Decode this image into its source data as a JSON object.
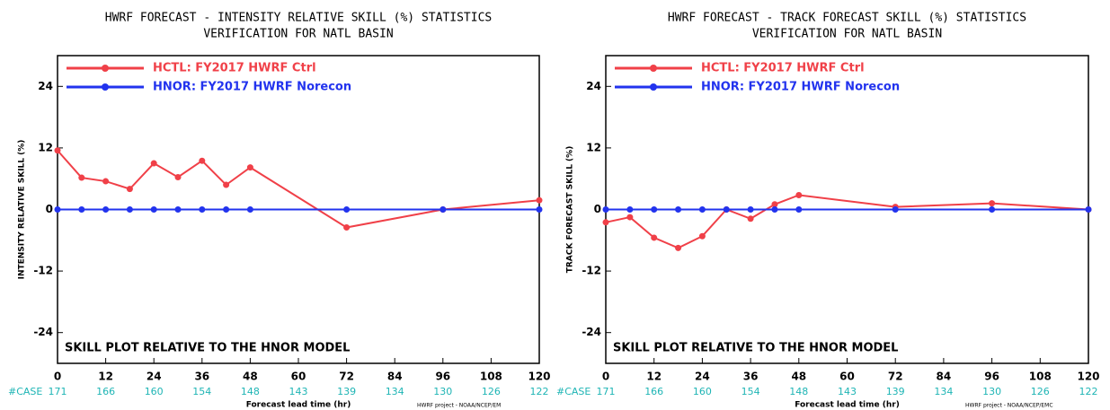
{
  "chart_data": [
    {
      "type": "line",
      "title": "HWRF FORECAST - INTENSITY RELATIVE SKILL (%) STATISTICS",
      "subtitle": "VERIFICATION FOR NATL BASIN",
      "ylabel": "INTENSITY RELATIVE SKILL (%)",
      "xlabel": "Forecast lead time (hr)",
      "annotation": "SKILL PLOT RELATIVE TO THE HNOR MODEL",
      "credit": "HWRF project - NOAA/NCEP/EM",
      "case_label": "#CASE",
      "case_counts": [
        171,
        166,
        160,
        154,
        148,
        143,
        139,
        134,
        130,
        126,
        122
      ],
      "x": [
        0,
        6,
        12,
        18,
        24,
        30,
        36,
        42,
        48,
        72,
        96,
        120
      ],
      "series": [
        {
          "name": "HCTL: FY2017 HWRF Ctrl",
          "color": "#f04048",
          "values": [
            11.5,
            6.2,
            5.5,
            4,
            9,
            6.3,
            9.5,
            4.8,
            8.2,
            -3.5,
            0,
            1.8
          ]
        },
        {
          "name": "HNOR: FY2017 HWRF Norecon",
          "color": "#2233ee",
          "values": [
            0,
            0,
            0,
            0,
            0,
            0,
            0,
            0,
            0,
            0,
            0,
            0
          ]
        }
      ],
      "xlim": [
        0,
        120
      ],
      "xticks": [
        0,
        12,
        24,
        36,
        48,
        60,
        72,
        84,
        96,
        108,
        120
      ],
      "ylim": [
        -30,
        30
      ],
      "yticks": [
        -24,
        -12,
        0,
        12,
        24
      ]
    },
    {
      "type": "line",
      "title": "HWRF FORECAST - TRACK FORECAST SKILL (%) STATISTICS",
      "subtitle": "VERIFICATION FOR NATL BASIN",
      "ylabel": "TRACK FORECAST SKILL (%)",
      "xlabel": "Forecast lead time (hr)",
      "annotation": "SKILL PLOT RELATIVE TO THE HNOR MODEL",
      "credit": "HWRF project - NOAA/NCEP/EMC",
      "case_label": "#CASE",
      "case_counts": [
        171,
        166,
        160,
        154,
        148,
        143,
        139,
        134,
        130,
        126,
        122
      ],
      "x": [
        0,
        6,
        12,
        18,
        24,
        30,
        36,
        42,
        48,
        72,
        96,
        120
      ],
      "series": [
        {
          "name": "HCTL: FY2017 HWRF Ctrl",
          "color": "#f04048",
          "values": [
            -2.5,
            -1.5,
            -5.5,
            -7.5,
            -5.2,
            0,
            -1.8,
            1,
            2.8,
            0.5,
            1.2,
            0
          ]
        },
        {
          "name": "HNOR: FY2017 HWRF Norecon",
          "color": "#2233ee",
          "values": [
            0,
            0,
            0,
            0,
            0,
            0,
            0,
            0,
            0,
            0,
            0,
            0
          ]
        }
      ],
      "xlim": [
        0,
        120
      ],
      "xticks": [
        0,
        12,
        24,
        36,
        48,
        60,
        72,
        84,
        96,
        108,
        120
      ],
      "ylim": [
        -30,
        30
      ],
      "yticks": [
        -24,
        -12,
        0,
        12,
        24
      ]
    }
  ]
}
